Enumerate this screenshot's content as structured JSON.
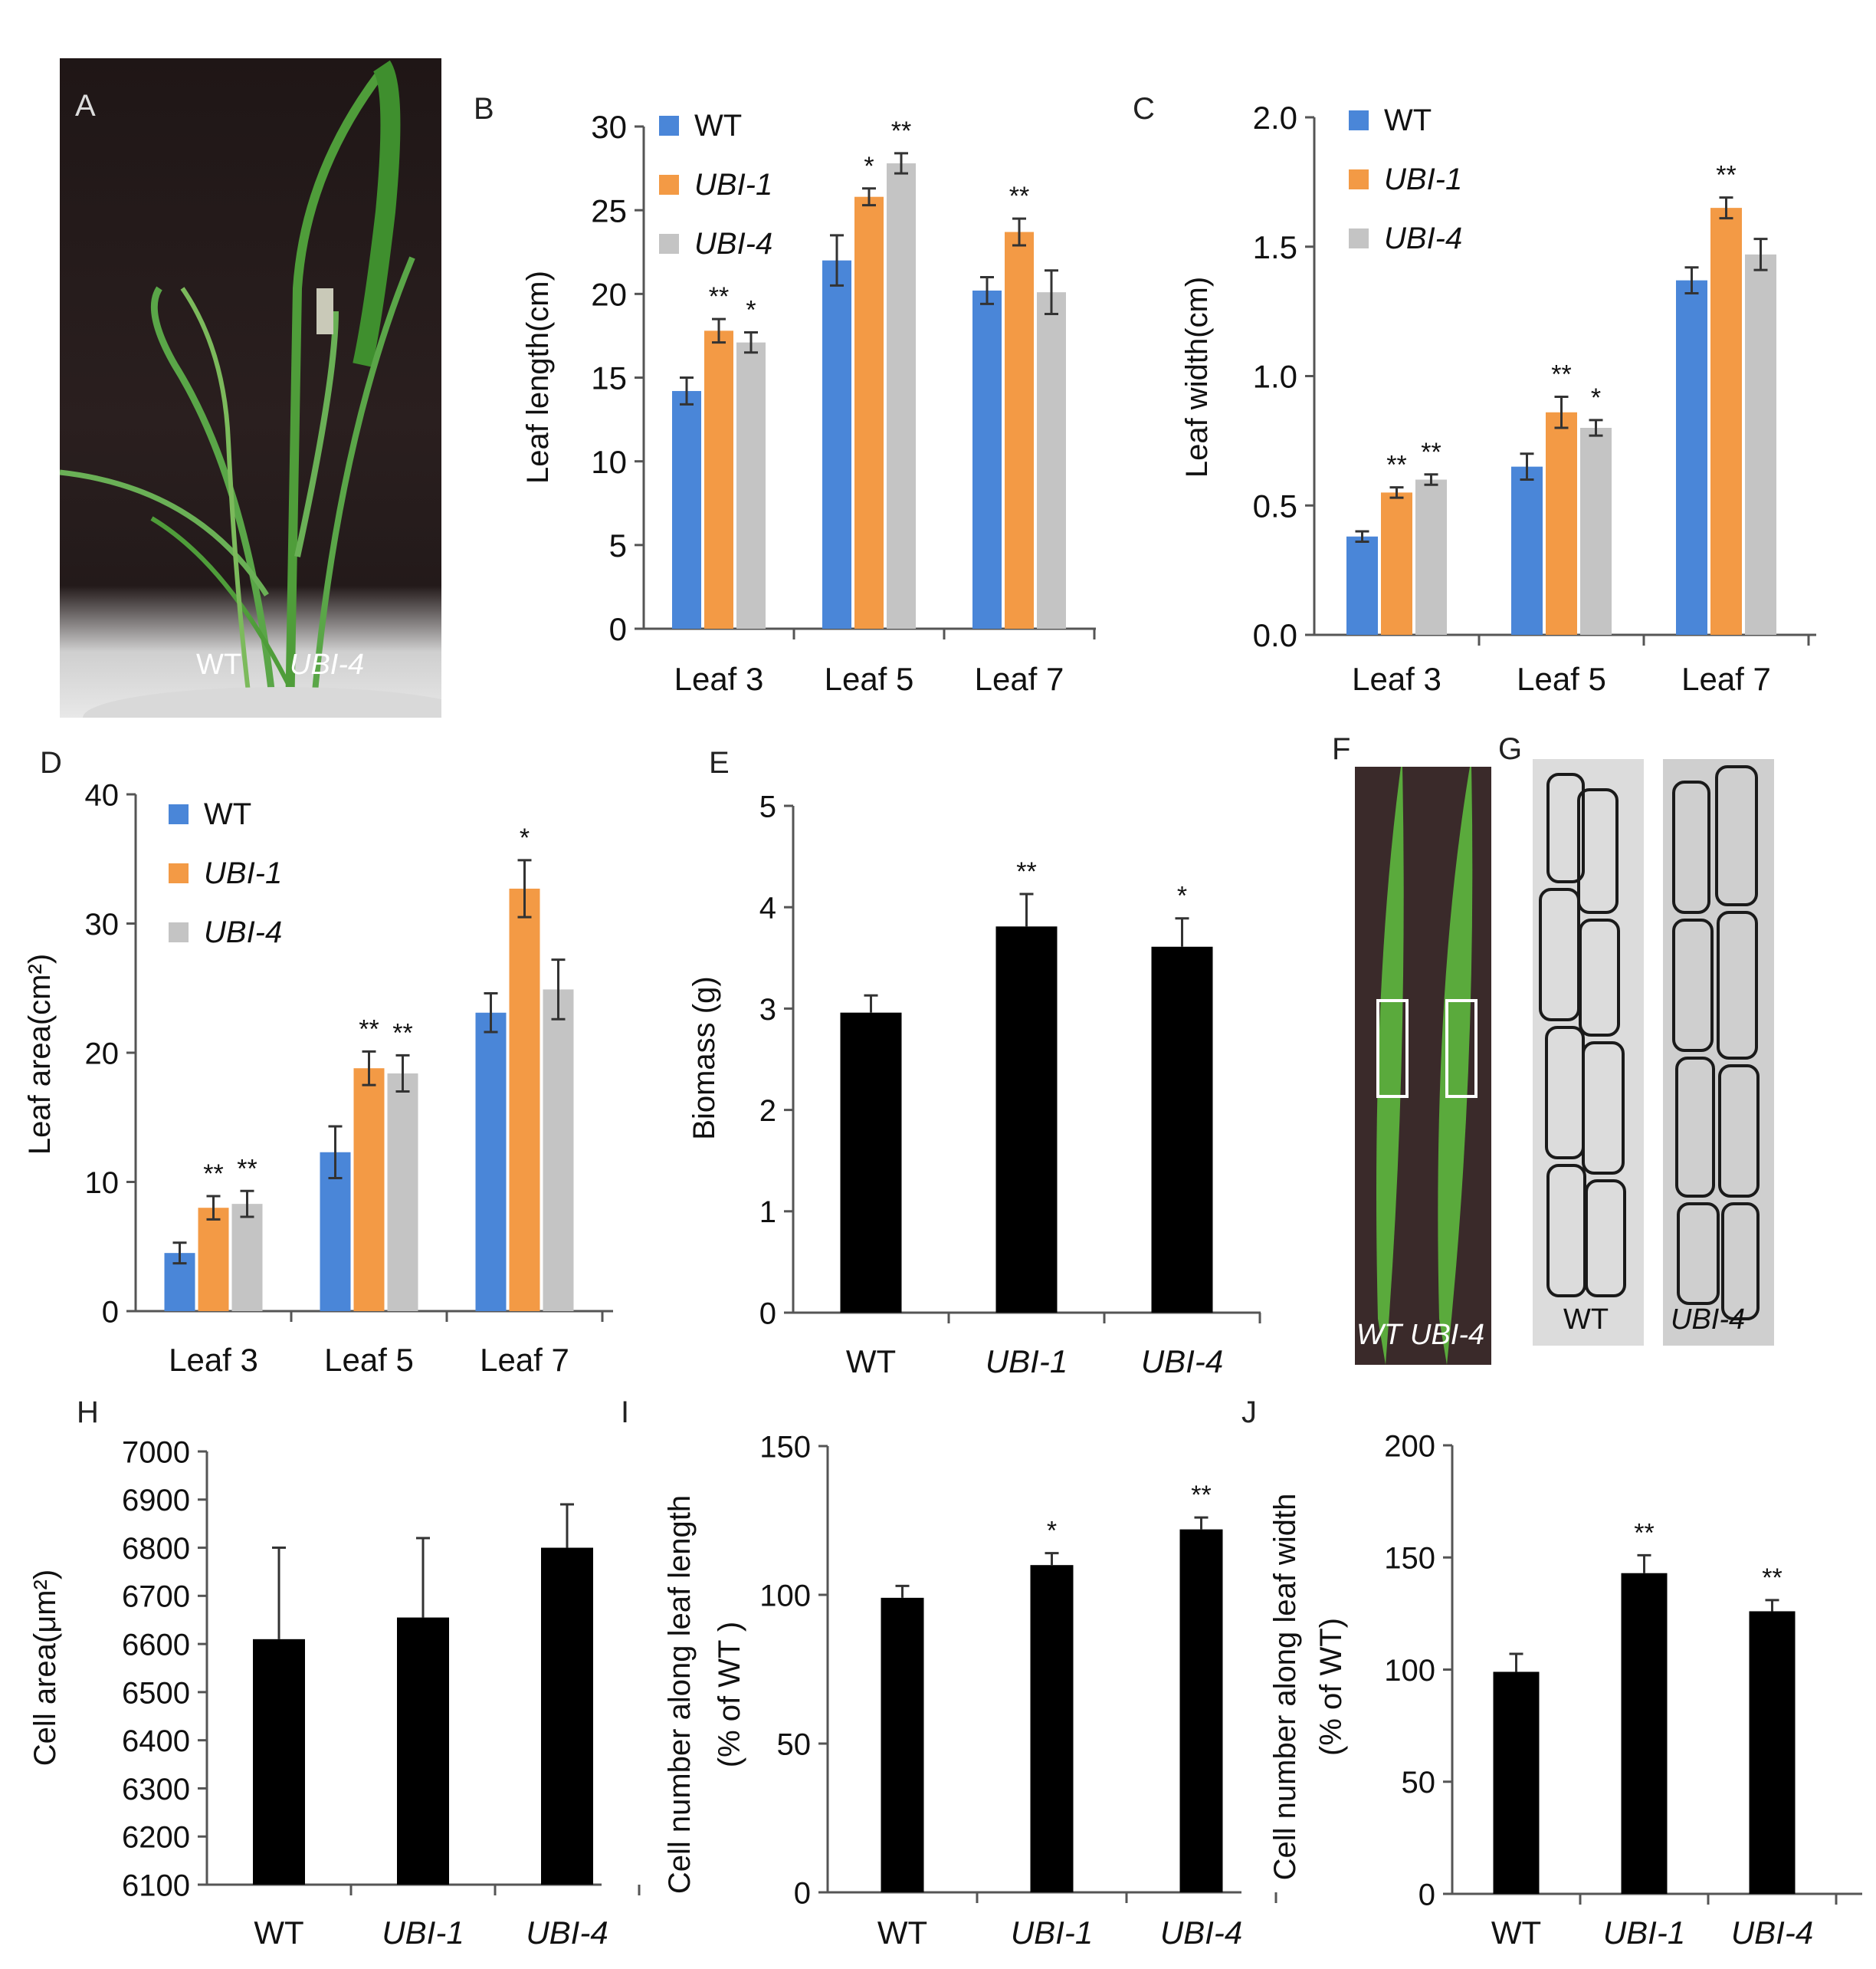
{
  "figure": {
    "panels": {
      "A": {
        "letter": "A",
        "caption_wt": "WT",
        "caption_mut": "UBI-4"
      },
      "F": {
        "letter": "F",
        "caption_wt": "WT",
        "caption_mut": "UBI-4"
      },
      "G": {
        "letter": "G",
        "caption_wt": "WT",
        "caption_mut": "UBI-4"
      }
    },
    "colors": {
      "WT": "#4a86d8",
      "UBI-1": "#f39a45",
      "UBI-4": "#c4c4c4",
      "single": "#000000",
      "error": "#333333"
    }
  },
  "chart_data": [
    {
      "id": "B",
      "letter": "B",
      "type": "bar",
      "categories": [
        "Leaf 3",
        "Leaf 5",
        "Leaf 7"
      ],
      "series": [
        {
          "name": "WT",
          "values": [
            14.2,
            22.0,
            20.2
          ],
          "errors": [
            0.8,
            1.5,
            0.8
          ],
          "stars": [
            "",
            "",
            ""
          ]
        },
        {
          "name": "UBI-1",
          "values": [
            17.8,
            25.8,
            23.7
          ],
          "errors": [
            0.7,
            0.5,
            0.8
          ],
          "stars": [
            "**",
            "*",
            "**"
          ]
        },
        {
          "name": "UBI-4",
          "values": [
            17.1,
            27.8,
            20.1
          ],
          "errors": [
            0.6,
            0.6,
            1.3
          ],
          "stars": [
            "*",
            "**",
            ""
          ]
        }
      ],
      "ylabel": "Leaf length(cm)",
      "ylim": [
        0,
        30
      ],
      "yticks": [
        "0",
        "5",
        "10",
        "15",
        "20",
        "25",
        "30"
      ]
    },
    {
      "id": "C",
      "letter": "C",
      "type": "bar",
      "categories": [
        "Leaf 3",
        "Leaf 5",
        "Leaf 7"
      ],
      "series": [
        {
          "name": "WT",
          "values": [
            0.38,
            0.65,
            1.37
          ],
          "errors": [
            0.02,
            0.05,
            0.05
          ],
          "stars": [
            "",
            "",
            ""
          ]
        },
        {
          "name": "UBI-1",
          "values": [
            0.55,
            0.86,
            1.65
          ],
          "errors": [
            0.02,
            0.06,
            0.04
          ],
          "stars": [
            "**",
            "**",
            "**"
          ]
        },
        {
          "name": "UBI-4",
          "values": [
            0.6,
            0.8,
            1.47
          ],
          "errors": [
            0.02,
            0.03,
            0.06
          ],
          "stars": [
            "**",
            "*",
            ""
          ]
        }
      ],
      "ylabel": "Leaf width(cm)",
      "ylim": [
        0,
        2.0
      ],
      "yticks": [
        "0.0",
        "0.5",
        "1.0",
        "1.5",
        "2.0"
      ]
    },
    {
      "id": "D",
      "letter": "D",
      "type": "bar",
      "categories": [
        "Leaf 3",
        "Leaf 5",
        "Leaf 7"
      ],
      "series": [
        {
          "name": "WT",
          "values": [
            4.5,
            12.3,
            23.1
          ],
          "errors": [
            0.8,
            2.0,
            1.5
          ],
          "stars": [
            "",
            "",
            ""
          ]
        },
        {
          "name": "UBI-1",
          "values": [
            8.0,
            18.8,
            32.7
          ],
          "errors": [
            0.9,
            1.3,
            2.2
          ],
          "stars": [
            "**",
            "**",
            "*"
          ]
        },
        {
          "name": "UBI-4",
          "values": [
            8.3,
            18.4,
            24.9
          ],
          "errors": [
            1.0,
            1.4,
            2.3
          ],
          "stars": [
            "**",
            "**",
            ""
          ]
        }
      ],
      "ylabel": "Leaf area(cm²)",
      "ylim": [
        0,
        40
      ],
      "yticks": [
        "0",
        "10",
        "20",
        "30",
        "40"
      ]
    },
    {
      "id": "E",
      "letter": "E",
      "type": "bar",
      "categories": [
        "WT",
        "UBI-1",
        "UBI-4"
      ],
      "values": [
        2.96,
        3.81,
        3.61
      ],
      "errors": [
        0.17,
        0.32,
        0.28
      ],
      "stars": [
        "",
        "**",
        "*"
      ],
      "ylabel": "Biomass (g)",
      "ylim": [
        0,
        5
      ],
      "yticks": [
        "0",
        "1",
        "2",
        "3",
        "4",
        "5"
      ]
    },
    {
      "id": "H",
      "letter": "H",
      "type": "bar",
      "categories": [
        "WT",
        "UBI-1",
        "UBI-4"
      ],
      "values": [
        6610,
        6655,
        6800
      ],
      "errors": [
        190,
        165,
        90
      ],
      "stars": [
        "",
        "",
        ""
      ],
      "ylabel": "Cell area(μm²)",
      "ylim": [
        6100,
        7000
      ],
      "yticks": [
        "6100",
        "6200",
        "6300",
        "6400",
        "6500",
        "6600",
        "6700",
        "6800",
        "6900",
        "7000"
      ]
    },
    {
      "id": "I",
      "letter": "I",
      "type": "bar",
      "categories": [
        "WT",
        "UBI-1",
        "UBI-4"
      ],
      "values": [
        99,
        110,
        122
      ],
      "errors": [
        4,
        4,
        4
      ],
      "stars": [
        "",
        "*",
        "**"
      ],
      "ylabel": "Cell number along leaf length",
      "ylabel2": "(% of WT )",
      "ylim": [
        0,
        150
      ],
      "yticks": [
        "0",
        "50",
        "100",
        "150"
      ]
    },
    {
      "id": "J",
      "letter": "J",
      "type": "bar",
      "categories": [
        "WT",
        "UBI-1",
        "UBI-4"
      ],
      "values": [
        99,
        143,
        126
      ],
      "errors": [
        8,
        8,
        5
      ],
      "stars": [
        "",
        "**",
        "**"
      ],
      "ylabel": "Cell number along leaf width",
      "ylabel2": "(% of WT)",
      "ylim": [
        0,
        200
      ],
      "yticks": [
        "0",
        "50",
        "100",
        "150",
        "200"
      ]
    }
  ]
}
